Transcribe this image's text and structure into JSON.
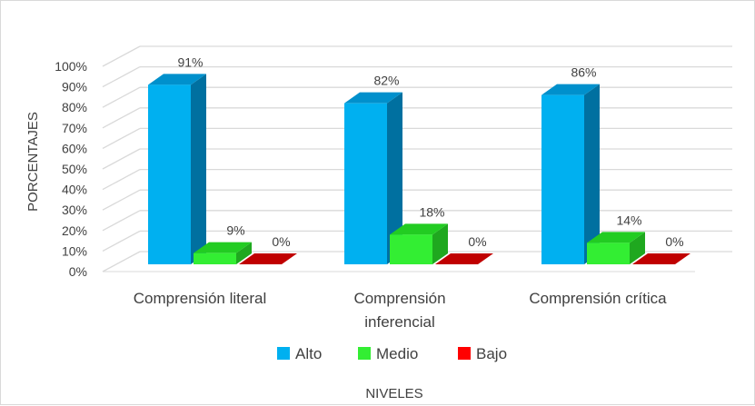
{
  "chart_data": {
    "type": "bar",
    "categories": [
      [
        "Comprensión literal"
      ],
      [
        "Comprensión",
        "inferencial"
      ],
      [
        "Comprensión crítica"
      ]
    ],
    "series": [
      {
        "name": "Alto",
        "values": [
          91,
          82,
          86
        ],
        "labels": [
          "91%",
          "82%",
          "86%"
        ],
        "color": "#00b0f0",
        "side_color": "#0070a0",
        "top_color": "#0090cc"
      },
      {
        "name": "Medio",
        "values": [
          9,
          18,
          14
        ],
        "labels": [
          "9%",
          "18%",
          "14%"
        ],
        "color": "#33ee33",
        "side_color": "#1fa81f",
        "top_color": "#22cc22"
      },
      {
        "name": "Bajo",
        "values": [
          0,
          0,
          0
        ],
        "labels": [
          "0%",
          "0%",
          "0%"
        ],
        "color": "#ff0000",
        "side_color": "#a00000",
        "top_color": "#c00000"
      }
    ],
    "yticks": [
      "0%",
      "10%",
      "20%",
      "30%",
      "40%",
      "50%",
      "60%",
      "70%",
      "80%",
      "90%",
      "100%"
    ],
    "ylim": [
      0,
      100
    ],
    "ylabel": "PORCENTAJES",
    "xlabel": "NIVELES",
    "legend_position": "bottom",
    "grid": true
  }
}
